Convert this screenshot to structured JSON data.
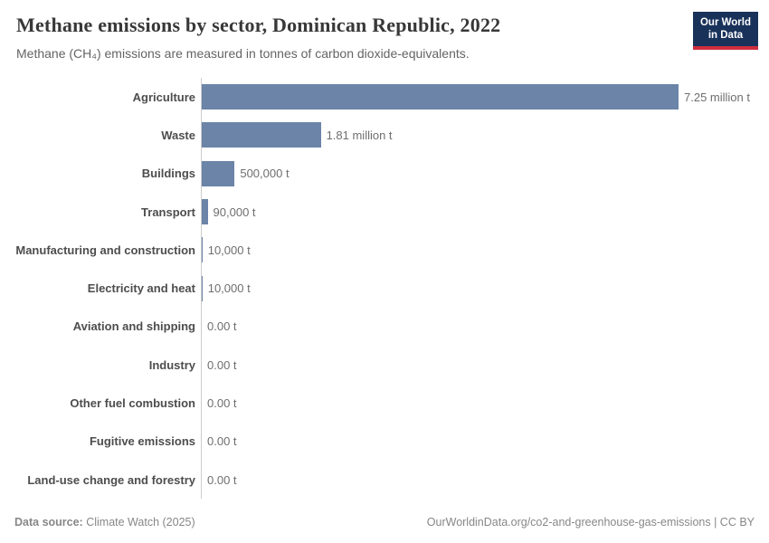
{
  "header": {
    "title": "Methane emissions by sector, Dominican Republic, 2022",
    "subtitle": "Methane (CH₄) emissions are measured in tonnes of carbon dioxide-equivalents.",
    "logo": {
      "line1": "Our World",
      "line2": "in Data",
      "bg_color": "#18325a",
      "accent_color": "#cf2d3e"
    }
  },
  "chart_data": {
    "type": "bar",
    "orientation": "horizontal",
    "title": "Methane emissions by sector, Dominican Republic, 2022",
    "unit": "tonnes of carbon dioxide-equivalents",
    "categories": [
      "Agriculture",
      "Waste",
      "Buildings",
      "Transport",
      "Manufacturing and construction",
      "Electricity and heat",
      "Aviation and shipping",
      "Industry",
      "Other fuel combustion",
      "Fugitive emissions",
      "Land-use change and forestry"
    ],
    "values": [
      7250000,
      1810000,
      500000,
      90000,
      10000,
      10000,
      0,
      0,
      0,
      0,
      0
    ],
    "value_labels": [
      "7.25 million t",
      "1.81 million t",
      "500,000 t",
      "90,000 t",
      "10,000 t",
      "10,000 t",
      "0.00 t",
      "0.00 t",
      "0.00 t",
      "0.00 t",
      "0.00 t"
    ],
    "xlim": [
      0,
      7250000
    ],
    "bar_color": "#6b84a8",
    "axis_color": "#cccccc",
    "grid": false,
    "legend": "none"
  },
  "footer": {
    "datasource_label": "Data source:",
    "datasource_value": "Climate Watch (2025)",
    "attribution": "OurWorldinData.org/co2-and-greenhouse-gas-emissions | CC BY"
  }
}
